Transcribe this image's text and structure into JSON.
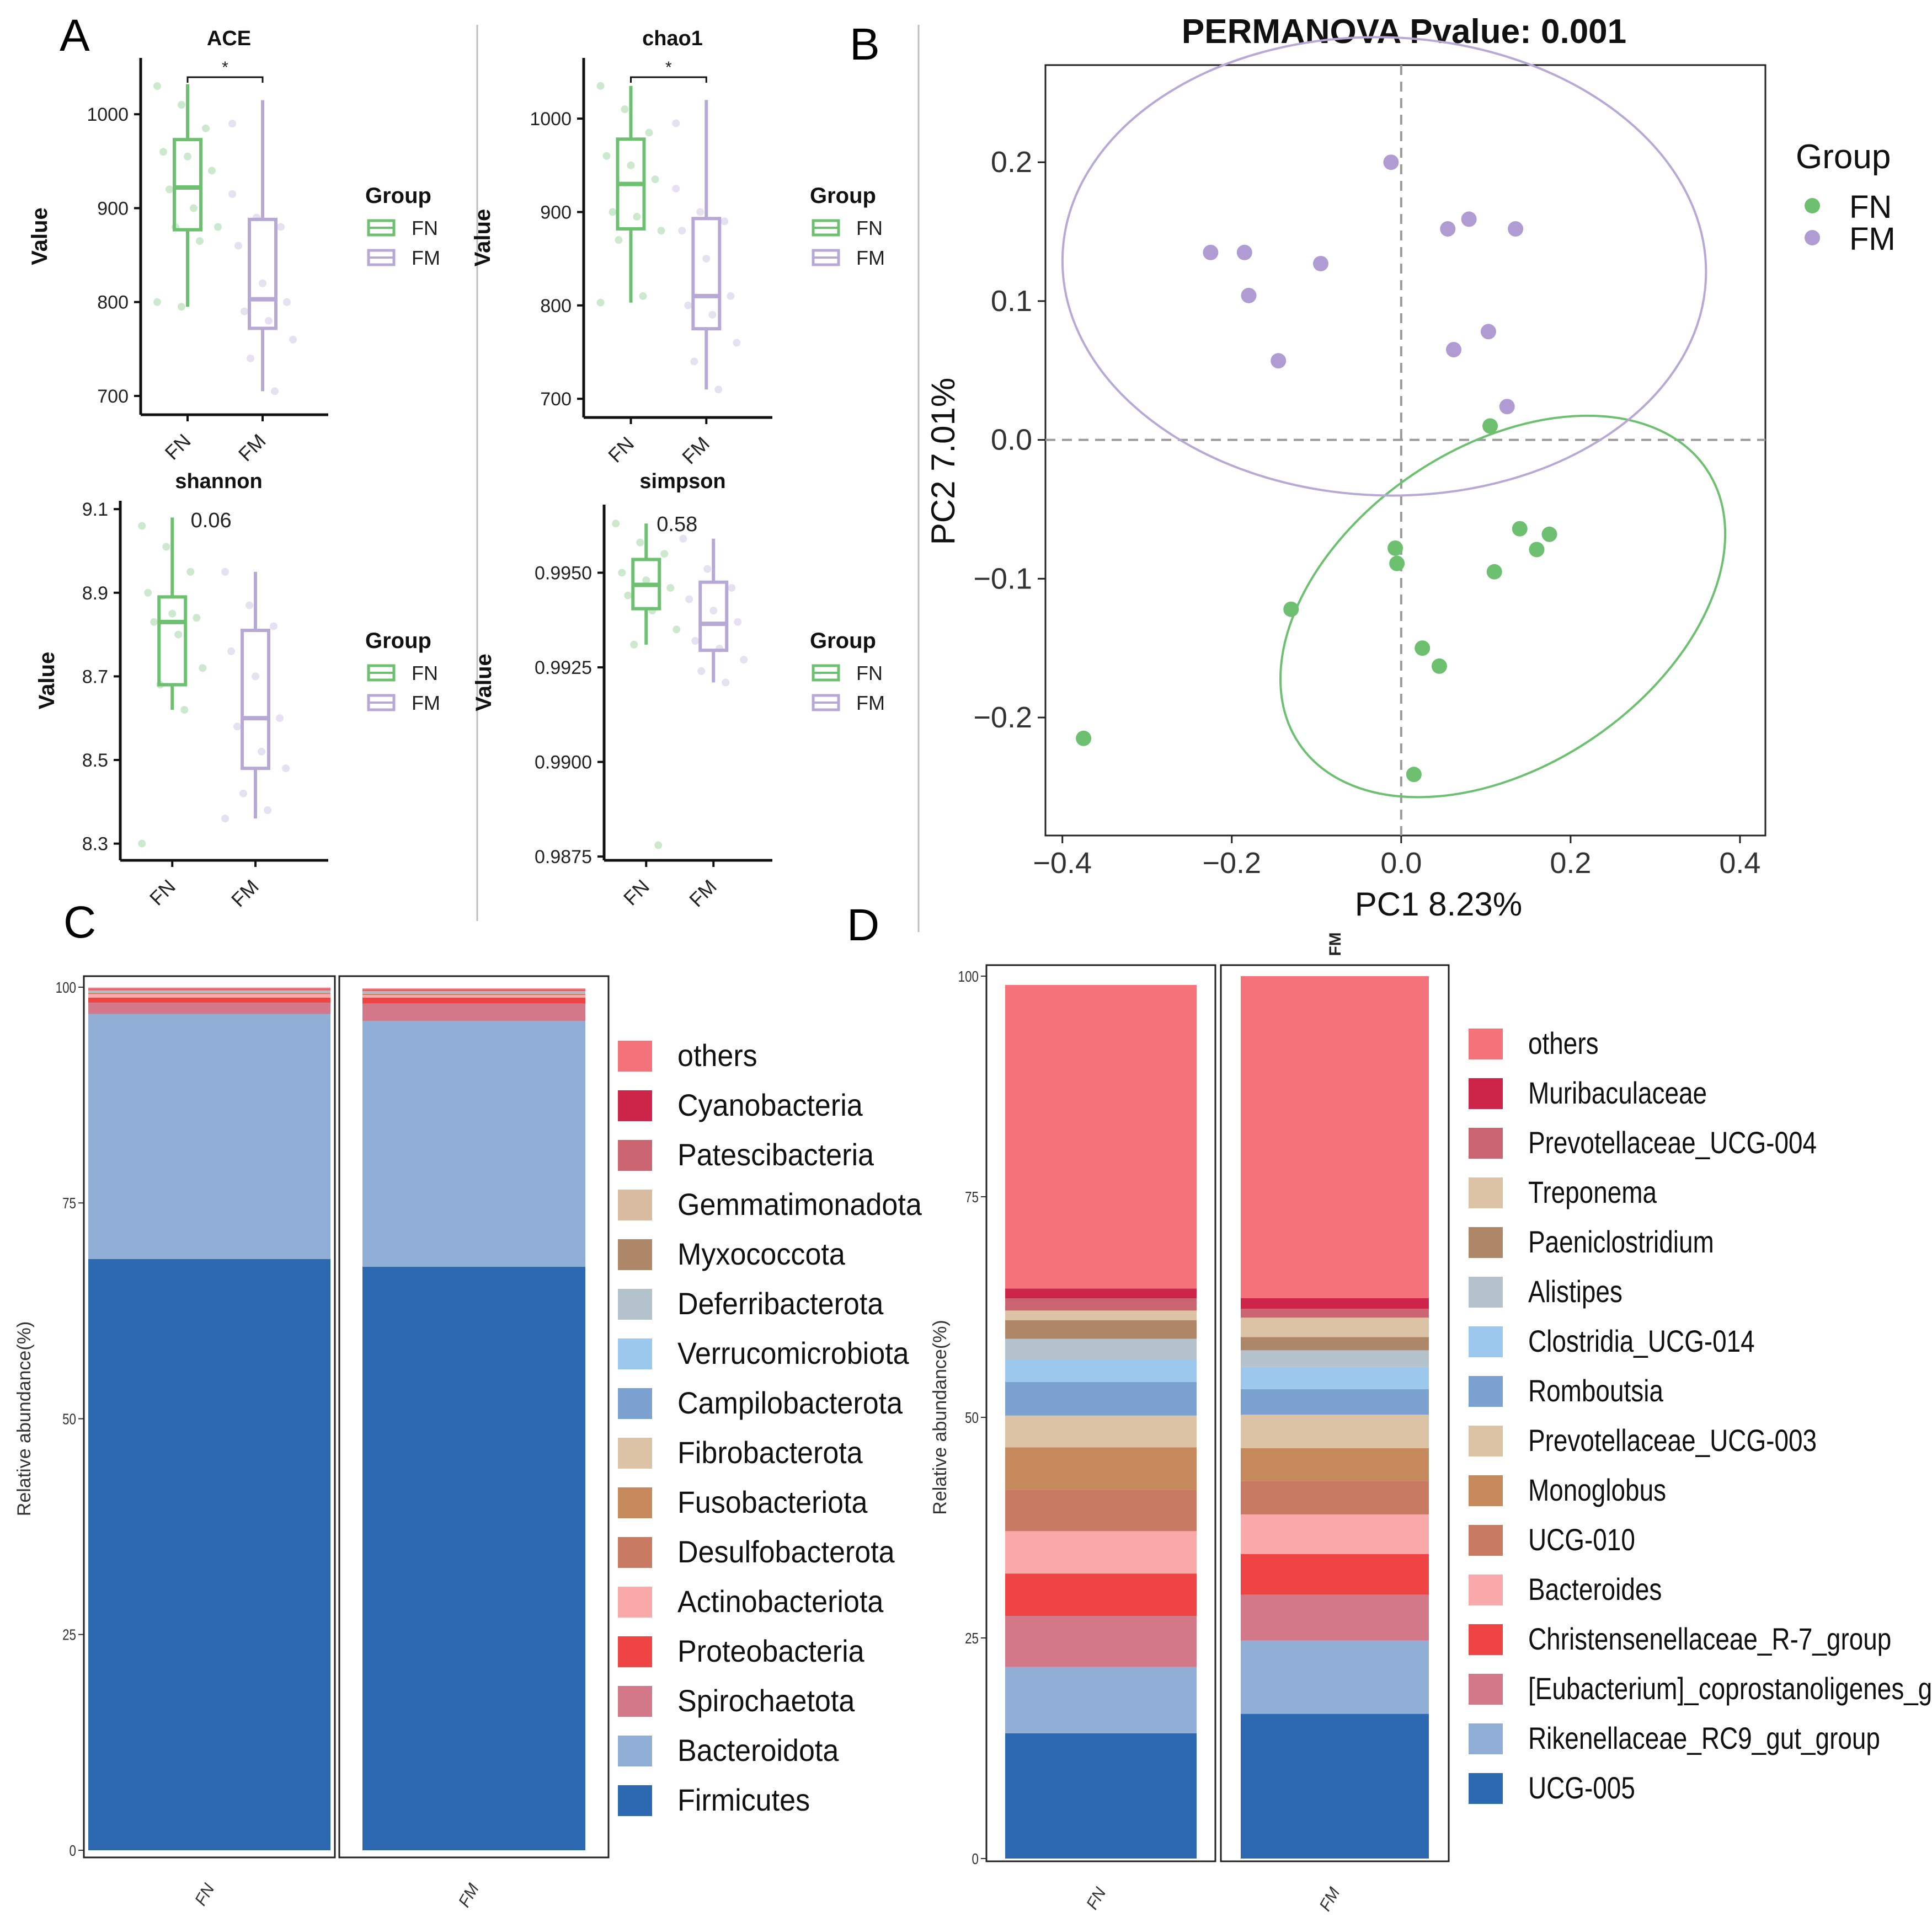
{
  "panel_letters": {
    "a": "A",
    "b": "B",
    "c": "C",
    "d": "D"
  },
  "colors": {
    "fn": "#6cc070",
    "fm": "#b8a8d6",
    "fn_point": "#6cc070",
    "fm_point": "#b09bd3",
    "grid_dash": "#9a9a9a",
    "axis": "#111111"
  },
  "chart_data": [
    {
      "id": "ace",
      "type": "box",
      "title": "ACE",
      "ylabel": "Value",
      "ylim": [
        680,
        1060
      ],
      "yticks": [
        700,
        800,
        900,
        1000
      ],
      "ytick_labels": [
        "700",
        "800",
        "900",
        "1000"
      ],
      "categories": [
        "FN",
        "FM"
      ],
      "boxes": [
        {
          "group": "FN",
          "min": 795,
          "q1": 877,
          "median": 922,
          "q3": 973,
          "max": 1032
        },
        {
          "group": "FM",
          "min": 705,
          "q1": 772,
          "median": 803,
          "q3": 888,
          "max": 1015
        }
      ],
      "points": [
        {
          "group": "FN",
          "values": [
            1030,
            1010,
            985,
            960,
            955,
            940,
            920,
            900,
            880,
            880,
            865,
            800,
            795
          ]
        },
        {
          "group": "FM",
          "values": [
            915,
            890,
            880,
            860,
            820,
            800,
            790,
            780,
            760,
            740,
            705,
            990
          ]
        }
      ],
      "significance": "*",
      "legend": {
        "title": "Group",
        "entries": [
          "FN",
          "FM"
        ]
      }
    },
    {
      "id": "chao1",
      "type": "box",
      "title": "chao1",
      "ylabel": "Value",
      "ylim": [
        680,
        1065
      ],
      "yticks": [
        700,
        800,
        900,
        1000
      ],
      "ytick_labels": [
        "700",
        "800",
        "900",
        "1000"
      ],
      "categories": [
        "FN",
        "FM"
      ],
      "boxes": [
        {
          "group": "FN",
          "min": 803,
          "q1": 882,
          "median": 930,
          "q3": 978,
          "max": 1035
        },
        {
          "group": "FM",
          "min": 710,
          "q1": 775,
          "median": 810,
          "q3": 893,
          "max": 1020
        }
      ],
      "points": [
        {
          "group": "FN",
          "values": [
            1035,
            1010,
            985,
            960,
            950,
            935,
            900,
            895,
            880,
            870,
            810,
            803
          ]
        },
        {
          "group": "FM",
          "values": [
            925,
            900,
            890,
            880,
            850,
            810,
            800,
            790,
            760,
            740,
            710,
            995
          ]
        }
      ],
      "significance": "*",
      "legend": {
        "title": "Group",
        "entries": [
          "FN",
          "FM"
        ]
      }
    },
    {
      "id": "shannon",
      "type": "box",
      "title": "shannon",
      "ylabel": "Value",
      "ylim": [
        8.26,
        9.12
      ],
      "yticks": [
        8.3,
        8.5,
        8.7,
        8.9,
        9.1
      ],
      "ytick_labels": [
        "8.3",
        "8.5",
        "8.7",
        "8.9",
        "9.1"
      ],
      "categories": [
        "FN",
        "FM"
      ],
      "boxes": [
        {
          "group": "FN",
          "min": 8.62,
          "q1": 8.68,
          "median": 8.83,
          "q3": 8.89,
          "max": 9.08
        },
        {
          "group": "FM",
          "min": 8.36,
          "q1": 8.48,
          "median": 8.6,
          "q3": 8.81,
          "max": 8.95
        }
      ],
      "points": [
        {
          "group": "FN",
          "values": [
            9.06,
            9.01,
            8.95,
            8.9,
            8.85,
            8.84,
            8.83,
            8.8,
            8.72,
            8.68,
            8.62,
            8.3
          ]
        },
        {
          "group": "FM",
          "values": [
            8.95,
            8.87,
            8.82,
            8.76,
            8.7,
            8.6,
            8.58,
            8.52,
            8.48,
            8.42,
            8.38,
            8.36
          ]
        }
      ],
      "pvalue_label": "0.06",
      "legend": {
        "title": "Group",
        "entries": [
          "FN",
          "FM"
        ]
      }
    },
    {
      "id": "simpson",
      "type": "box",
      "title": "simpson",
      "ylabel": "Value",
      "ylim": [
        0.9874,
        0.9968
      ],
      "yticks": [
        0.9875,
        0.99,
        0.9925,
        0.995
      ],
      "ytick_labels": [
        "0.9875",
        "0.9900",
        "0.9925",
        "0.9950"
      ],
      "categories": [
        "FN",
        "FM"
      ],
      "boxes": [
        {
          "group": "FN",
          "min": 0.9931,
          "q1": 0.99405,
          "median": 0.99468,
          "q3": 0.99535,
          "max": 0.9963
        },
        {
          "group": "FM",
          "min": 0.9921,
          "q1": 0.99295,
          "median": 0.99365,
          "q3": 0.99475,
          "max": 0.9959
        }
      ],
      "points": [
        {
          "group": "FN",
          "values": [
            0.9963,
            0.9958,
            0.9955,
            0.995,
            0.9948,
            0.9946,
            0.9944,
            0.994,
            0.9935,
            0.9931,
            0.9878
          ]
        },
        {
          "group": "FM",
          "values": [
            0.9959,
            0.9951,
            0.9946,
            0.9943,
            0.994,
            0.9937,
            0.9932,
            0.993,
            0.9927,
            0.9924,
            0.9921
          ]
        }
      ],
      "pvalue_label": "0.58",
      "legend": {
        "title": "Group",
        "entries": [
          "FN",
          "FM"
        ]
      }
    },
    {
      "id": "pcoa",
      "type": "scatter",
      "title": "PERMANOVA Pvalue: 0.001",
      "xlabel": "PC1 8.23%",
      "ylabel": "PC2 7.01%",
      "xlim": [
        -0.42,
        0.43
      ],
      "ylim": [
        -0.285,
        0.27
      ],
      "xticks": [
        -0.4,
        -0.2,
        0.0,
        0.2,
        0.4
      ],
      "xtick_labels": [
        "−0.4",
        "−0.2",
        "0.0",
        "0.2",
        "0.4"
      ],
      "yticks": [
        -0.2,
        -0.1,
        0.0,
        0.1,
        0.2
      ],
      "ytick_labels": [
        "−0.2",
        "−0.1",
        "0.0",
        "0.1",
        "0.2"
      ],
      "series": [
        {
          "name": "FN",
          "x": [
            -0.375,
            -0.13,
            -0.007,
            -0.005,
            0.025,
            0.045,
            0.015,
            0.105,
            0.11,
            0.14,
            0.16,
            0.175
          ],
          "y": [
            -0.215,
            -0.122,
            -0.078,
            -0.089,
            -0.15,
            -0.163,
            -0.241,
            0.01,
            -0.095,
            -0.064,
            -0.079,
            -0.068
          ]
        },
        {
          "name": "FM",
          "x": [
            -0.225,
            -0.185,
            -0.18,
            -0.145,
            -0.095,
            -0.012,
            0.055,
            0.08,
            0.062,
            0.103,
            0.135,
            0.125
          ],
          "y": [
            0.135,
            0.135,
            0.104,
            0.057,
            0.127,
            0.2,
            0.152,
            0.159,
            0.065,
            0.078,
            0.152,
            0.024
          ]
        }
      ],
      "ellipses": [
        {
          "group": "FN",
          "cx": 0.12,
          "cy": -0.12,
          "rx": 0.29,
          "ry": 0.115,
          "angle_deg": 34
        },
        {
          "group": "FM",
          "cx": -0.02,
          "cy": 0.125,
          "rx": 0.38,
          "ry": 0.165,
          "angle_deg": -2
        }
      ],
      "legend": {
        "title": "Group",
        "entries": [
          "FN",
          "FM"
        ]
      }
    },
    {
      "id": "phylum",
      "type": "stacked_bar",
      "ylabel": "Relative abundance(%)",
      "ylim": [
        0,
        100
      ],
      "yticks": [
        0,
        25,
        50,
        75,
        100
      ],
      "ytick_labels": [
        "0",
        "25",
        "50",
        "75",
        "100"
      ],
      "categories": [
        "FN",
        "FM"
      ],
      "series": [
        {
          "name": "Firmicutes",
          "color": "#2d69b0",
          "values": [
            68.5,
            67.6
          ]
        },
        {
          "name": "Bacteroidota",
          "color": "#91aed6",
          "values": [
            28.4,
            28.5
          ]
        },
        {
          "name": "Spirochaetota",
          "color": "#d27888",
          "values": [
            1.3,
            2.0
          ]
        },
        {
          "name": "Proteobacteria",
          "color": "#ee4444",
          "values": [
            0.6,
            0.7
          ]
        },
        {
          "name": "Actinobacteriota",
          "color": "#f9a9a9",
          "values": [
            0.4,
            0.3
          ]
        },
        {
          "name": "Desulfobacterota",
          "color": "#c97a62",
          "values": [
            0.1,
            0.1
          ]
        },
        {
          "name": "Fusobacteriota",
          "color": "#c5895c",
          "values": [
            0.05,
            0.05
          ]
        },
        {
          "name": "Fibrobacterota",
          "color": "#dcc3a5",
          "values": [
            0.05,
            0.05
          ]
        },
        {
          "name": "Campilobacterota",
          "color": "#7aa1d0",
          "values": [
            0.05,
            0.05
          ]
        },
        {
          "name": "Verrucomicrobiota",
          "color": "#9dc8ee",
          "values": [
            0.05,
            0.05
          ]
        },
        {
          "name": "Deferribacterota",
          "color": "#b4c2cc",
          "values": [
            0.05,
            0.05
          ]
        },
        {
          "name": "Myxococcota",
          "color": "#ad8767",
          "values": [
            0.05,
            0.05
          ]
        },
        {
          "name": "Gemmatimonadota",
          "color": "#d9bba1",
          "values": [
            0.05,
            0.05
          ]
        },
        {
          "name": "Patescibacteria",
          "color": "#c96470",
          "values": [
            0.05,
            0.05
          ]
        },
        {
          "name": "Cyanobacteria",
          "color": "#cd2549",
          "values": [
            0.05,
            0.05
          ]
        },
        {
          "name": "others",
          "color": "#f4737b",
          "values": [
            0.2,
            0.2
          ]
        }
      ]
    },
    {
      "id": "genus",
      "type": "stacked_bar",
      "ylabel": "Relative abundance(%)",
      "top_label": "FM",
      "ylim": [
        0,
        100
      ],
      "yticks": [
        0,
        25,
        50,
        75,
        100
      ],
      "ytick_labels": [
        "0",
        "25",
        "50",
        "75",
        "100"
      ],
      "categories": [
        "FN",
        "FM"
      ],
      "series": [
        {
          "name": "UCG-005",
          "color": "#2d69b0",
          "values": [
            14.2,
            16.4
          ]
        },
        {
          "name": "Rikenellaceae_RC9_gut_group",
          "color": "#91aed6",
          "values": [
            7.5,
            8.3
          ]
        },
        {
          "name": "[Eubacterium]_coprostanoligenes_group",
          "color": "#d27888",
          "values": [
            5.8,
            5.2
          ]
        },
        {
          "name": "Christensenellaceae_R-7_group",
          "color": "#ee4444",
          "values": [
            4.8,
            4.6
          ]
        },
        {
          "name": "Bacteroides",
          "color": "#f9a9a9",
          "values": [
            4.8,
            4.5
          ]
        },
        {
          "name": "UCG-010",
          "color": "#c97a62",
          "values": [
            4.7,
            3.8
          ]
        },
        {
          "name": "Monoglobus",
          "color": "#c5895c",
          "values": [
            4.8,
            3.7
          ]
        },
        {
          "name": "Prevotellaceae_UCG-003",
          "color": "#dcc3a5",
          "values": [
            3.6,
            3.8
          ]
        },
        {
          "name": "Romboutsia",
          "color": "#7aa1d0",
          "values": [
            3.8,
            2.9
          ]
        },
        {
          "name": "Clostridia_UCG-014",
          "color": "#9dc8ee",
          "values": [
            2.5,
            2.5
          ]
        },
        {
          "name": "Alistipes",
          "color": "#b4c2cc",
          "values": [
            2.4,
            1.9
          ]
        },
        {
          "name": "Paeniclostridium",
          "color": "#ad8767",
          "values": [
            2.1,
            1.5
          ]
        },
        {
          "name": "Treponema",
          "color": "#dcc3a5",
          "values": [
            1.1,
            2.2
          ]
        },
        {
          "name": "Prevotellaceae_UCG-004",
          "color": "#c96470",
          "values": [
            1.4,
            1.0
          ]
        },
        {
          "name": "Muribaculaceae",
          "color": "#cd2549",
          "values": [
            1.1,
            1.2
          ]
        },
        {
          "name": "others",
          "color": "#f4737b",
          "values": [
            34.4,
            36.5
          ]
        }
      ]
    }
  ]
}
